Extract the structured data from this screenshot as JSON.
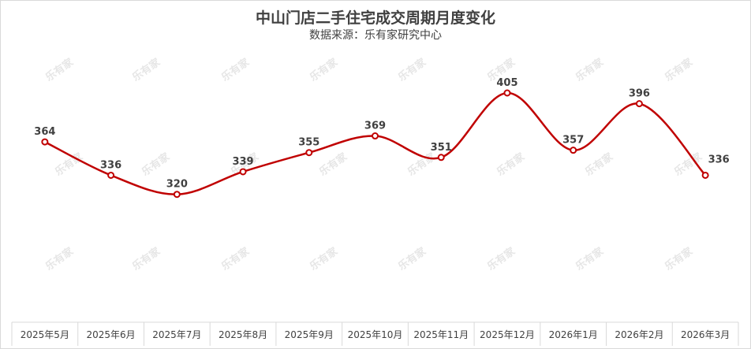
{
  "title": "中山门店二手住宅成交周期月度变化",
  "subtitle": "数据来源：乐有家研究中心",
  "watermark": "乐有家",
  "colors": {
    "line": "#c00000",
    "marker_fill": "#ffffff",
    "axis": "#d9d9d9"
  },
  "chart_data": {
    "type": "line",
    "title": "中山门店二手住宅成交周期月度变化",
    "subtitle": "数据来源：乐有家研究中心",
    "categories": [
      "2025年5月",
      "2025年6月",
      "2025年7月",
      "2025年8月",
      "2025年9月",
      "2025年10月",
      "2025年11月",
      "2025年12月",
      "2026年1月",
      "2026年2月",
      "2026年3月"
    ],
    "series": [
      {
        "values": [
          364,
          336,
          320,
          339,
          355,
          369,
          351,
          405,
          357,
          396,
          336
        ]
      }
    ],
    "xlabel": "",
    "ylabel": "",
    "ylim": [
      200,
      440
    ],
    "y_axis_visible": false,
    "grid": false,
    "smooth": true,
    "data_labels": true,
    "legend": "none"
  }
}
